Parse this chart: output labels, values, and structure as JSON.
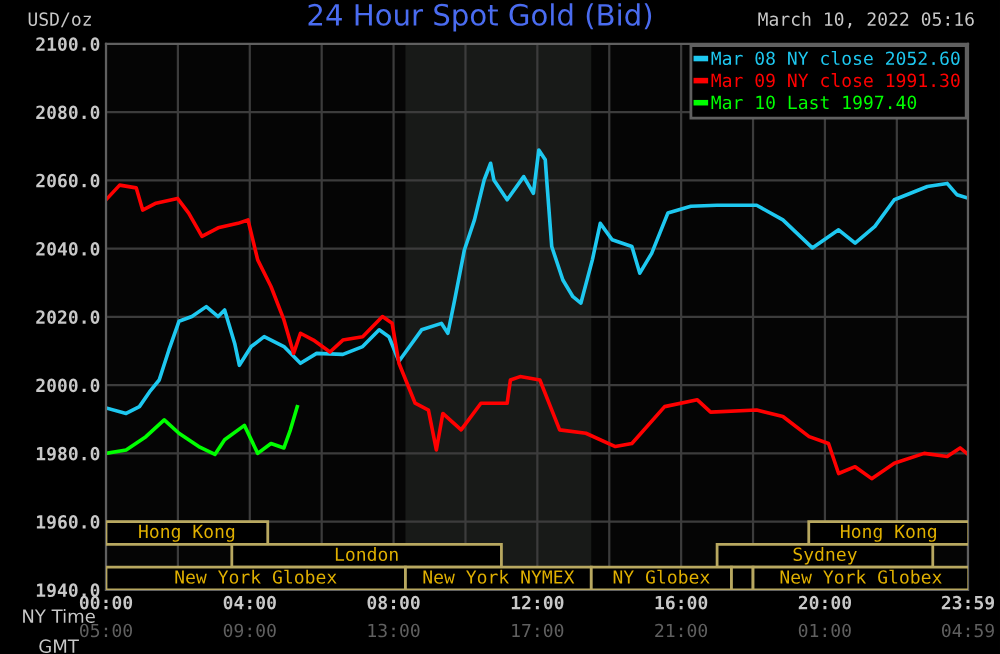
{
  "chart_data": {
    "type": "line",
    "title": "24 Hour Spot Gold (Bid)",
    "subtitle": "March 10, 2022 05:16",
    "ylabel": "USD/oz",
    "xlabel": "NY Time",
    "x2label": "GMT",
    "series": [
      {
        "name": "Mar 08 NY close 2052.60",
        "color": "#1ec8f0",
        "x": [
          0,
          0.56,
          0.93,
          1.21,
          1.48,
          1.75,
          2.03,
          2.39,
          2.79,
          3.12,
          3.3,
          3.58,
          3.71,
          4.04,
          4.4,
          4.95,
          5.41,
          5.86,
          6.59,
          7.14,
          7.6,
          7.87,
          8.15,
          8.78,
          9.33,
          9.51,
          9.7,
          9.97,
          10.25,
          10.52,
          10.7,
          10.79,
          11.16,
          11.62,
          11.89,
          12.04,
          12.22,
          12.26,
          12.4,
          12.71,
          12.99,
          13.21,
          13.53,
          13.75,
          14.08,
          14.63,
          14.85,
          15.18,
          15.63,
          16.27,
          17.0,
          18.1,
          18.83,
          19.65,
          20.38,
          20.84,
          21.39,
          21.93,
          22.85,
          23.4,
          23.67,
          23.95
        ],
        "values": [
          1993.3,
          1991.7,
          1993.7,
          1998.0,
          2001.5,
          2010.3,
          2018.7,
          2020.1,
          2023.0,
          2020.1,
          2022.0,
          2012.2,
          2005.8,
          2011.3,
          2014.2,
          2011.3,
          2006.4,
          2009.3,
          2009.0,
          2011.3,
          2016.2,
          2014.2,
          2007.0,
          2016.2,
          2018.1,
          2015.2,
          2025.0,
          2039.6,
          2048.4,
          2060.1,
          2065.0,
          2060.1,
          2054.3,
          2061.1,
          2056.2,
          2068.9,
          2066.0,
          2060.1,
          2040.6,
          2030.8,
          2025.9,
          2024.0,
          2036.7,
          2047.4,
          2042.6,
          2040.6,
          2032.8,
          2038.6,
          2050.4,
          2052.4,
          2052.7,
          2052.7,
          2048.4,
          2040.2,
          2045.5,
          2041.6,
          2046.5,
          2054.3,
          2058.2,
          2059.1,
          2055.8,
          2054.9
        ]
      },
      {
        "name": "Mar 09 NY close 1991.30",
        "color": "#ff0000",
        "x": [
          0,
          0.38,
          0.84,
          1.02,
          1.39,
          1.99,
          2.3,
          2.67,
          3.12,
          3.67,
          3.95,
          4.22,
          4.59,
          4.95,
          5.22,
          5.41,
          5.77,
          6.23,
          6.59,
          7.14,
          7.69,
          7.96,
          8.15,
          8.6,
          8.97,
          9.19,
          9.37,
          9.88,
          10.43,
          11.16,
          11.25,
          11.52,
          12.07,
          12.62,
          13.35,
          14.17,
          14.63,
          15.54,
          16.45,
          16.82,
          18.1,
          18.83,
          19.56,
          20.1,
          20.38,
          20.84,
          21.3,
          21.93,
          22.76,
          23.4,
          23.76,
          23.95
        ],
        "values": [
          2054.3,
          2058.6,
          2057.8,
          2051.3,
          2053.3,
          2054.7,
          2050.4,
          2043.6,
          2046.1,
          2047.4,
          2048.4,
          2036.7,
          2028.9,
          2019.1,
          2009.3,
          2015.2,
          2013.2,
          2009.7,
          2013.2,
          2014.2,
          2020.1,
          2018.1,
          2006.4,
          1994.7,
          1992.7,
          1981.0,
          1991.7,
          1986.9,
          1994.7,
          1994.7,
          2001.5,
          2002.5,
          2001.5,
          1986.9,
          1985.9,
          1982.0,
          1982.9,
          1993.7,
          1995.7,
          1992.1,
          1992.7,
          1990.8,
          1984.9,
          1982.9,
          1974.1,
          1976.1,
          1972.6,
          1977.1,
          1980.0,
          1979.1,
          1981.6,
          1980.0
        ]
      },
      {
        "name": "Mar 10 Last 1997.40",
        "color": "#00ff00",
        "x": [
          0,
          0.56,
          1.11,
          1.62,
          2.03,
          2.58,
          3.03,
          3.3,
          3.85,
          4.22,
          4.59,
          4.95,
          5.13,
          5.32
        ],
        "values": [
          1980.0,
          1981.0,
          1984.9,
          1989.8,
          1985.9,
          1982.0,
          1979.7,
          1984.0,
          1988.2,
          1980.0,
          1982.9,
          1981.6,
          1986.9,
          1993.7
        ]
      }
    ],
    "xlim": [
      0,
      23.98
    ],
    "xticks": [
      {
        "value": 0,
        "label": "00:00"
      },
      {
        "value": 2,
        "label": null
      },
      {
        "value": 4,
        "label": "04:00"
      },
      {
        "value": 6,
        "label": null
      },
      {
        "value": 8,
        "label": "08:00"
      },
      {
        "value": 10,
        "label": null
      },
      {
        "value": 12,
        "label": "12:00"
      },
      {
        "value": 14,
        "label": null
      },
      {
        "value": 16,
        "label": "16:00"
      },
      {
        "value": 18,
        "label": null
      },
      {
        "value": 20,
        "label": "20:00"
      },
      {
        "value": 22,
        "label": null
      },
      {
        "value": 23.98,
        "label": "23:59"
      }
    ],
    "x2lim": [
      "2022-03-10T05:00",
      "2022-03-11T04:59"
    ],
    "x2ticks": [
      {
        "value": "2022-03-10T05:00",
        "label": "05:00"
      },
      {
        "value": "2022-03-10T09:00",
        "label": "09:00"
      },
      {
        "value": "2022-03-10T13:00",
        "label": "13:00"
      },
      {
        "value": "2022-03-10T17:00",
        "label": "17:00"
      },
      {
        "value": "2022-03-10T21:00",
        "label": "21:00"
      },
      {
        "value": "2022-03-11T01:00",
        "label": "01:00"
      },
      {
        "value": "2022-03-11T04:59",
        "label": "04:59"
      }
    ],
    "ylim": [
      1940,
      2100
    ],
    "yticks": [
      {
        "value": 1940,
        "label": "1940.0"
      },
      {
        "value": 1960,
        "label": "1960.0"
      },
      {
        "value": 1980,
        "label": "1980.0"
      },
      {
        "value": 2000,
        "label": "2000.0"
      },
      {
        "value": 2020,
        "label": "2020.0"
      },
      {
        "value": 2040,
        "label": "2040.0"
      },
      {
        "value": 2060,
        "label": "2060.0"
      },
      {
        "value": 2080,
        "label": "2080.0"
      },
      {
        "value": 2100,
        "label": "2100.0"
      }
    ],
    "bands": [
      {
        "axis": "x",
        "from": 8.33,
        "to": 13.5,
        "color": "#181a18"
      },
      {
        "axis": "x",
        "from": 0,
        "to": 4.5,
        "label": "Hong Kong"
      },
      {
        "axis": "x",
        "from": 19.55,
        "to": 24,
        "label": "Hong Kong"
      },
      {
        "axis": "x",
        "from": 3.5,
        "to": 11.0,
        "label": "London"
      },
      {
        "axis": "x",
        "from": 17.0,
        "to": 23.0,
        "label": "Sydney"
      },
      {
        "axis": "x",
        "from": 0,
        "to": 8.33,
        "label": "New York Globex"
      },
      {
        "axis": "x",
        "from": 8.33,
        "to": 13.5,
        "label": "New York NYMEX"
      },
      {
        "axis": "x",
        "from": 13.5,
        "to": 17.4,
        "label": "NY Globex"
      },
      {
        "axis": "x",
        "from": 17.4,
        "to": 18.0,
        "label": null
      },
      {
        "axis": "x",
        "from": 18.0,
        "to": 24,
        "label": "New York Globex"
      }
    ],
    "grid": true,
    "legend": "top right",
    "marker": "none",
    "line_style": "solid"
  }
}
